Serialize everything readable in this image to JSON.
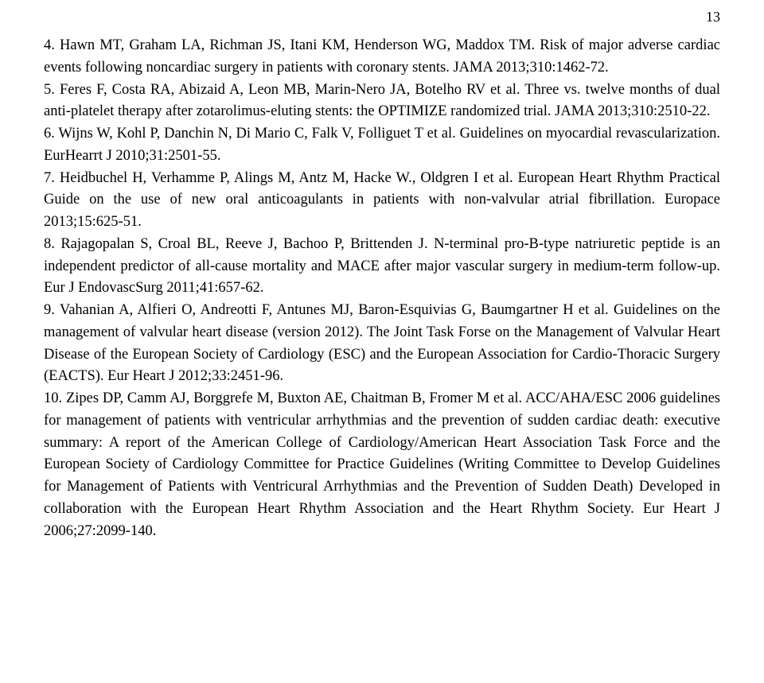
{
  "page_number": "13",
  "references": [
    "4. Hawn MT, Graham LA, Richman JS, Itani KM, Henderson WG, Maddox TM. Risk of major adverse cardiac events following noncardiac surgery in patients with coronary stents. JAMA 2013;310:1462-72.",
    "5. Feres F, Costa RA, Abizaid A, Leon MB, Marin-Nero JA, Botelho RV et al. Three vs. twelve months of dual anti-platelet therapy after zotarolimus-eluting stents: the OPTIMIZE randomized trial. JAMA 2013;310:2510-22.",
    "6. Wijns W, Kohl P, Danchin N, Di Mario C, Falk V, Folliguet T et al. Guidelines on myocardial revascularization. EurHearrt J 2010;31:2501-55.",
    "7. Heidbuchel H, Verhamme P, Alings M, Antz M, Hacke W., Oldgren I et al. European Heart Rhythm Practical Guide on the use of new oral anticoagulants in patients with non-valvular atrial fibrillation. Europace 2013;15:625-51.",
    "8. Rajagopalan S, Croal BL, Reeve J, Bachoo P, Brittenden J. N-terminal pro-B-type natriuretic peptide is an independent predictor of all-cause mortality and MACE after major vascular surgery in medium-term follow-up. Eur J EndovascSurg 2011;41:657-62.",
    "9. Vahanian A, Alfieri O, Andreotti F, Antunes MJ, Baron-Esquivias G, Baumgartner H et al. Guidelines on the management of valvular heart disease (version 2012). The Joint Task Forse on the Management of Valvular Heart Disease of the European Society of Cardiology (ESC) and the European Association for Cardio-Thoracic Surgery (EACTS). Eur Heart J 2012;33:2451-96.",
    "10. Zipes DP, Camm AJ, Borggrefe M, Buxton AE, Chaitman B, Fromer M et al. ACC/AHA/ESC 2006 guidelines for management of patients with ventricular arrhythmias and the prevention of sudden cardiac death: executive summary: A report of the American College of Cardiology/American Heart Association Task Force and the European Society of Cardiology Committee for Practice Guidelines (Writing Committee to Develop Guidelines for Management of Patients with Ventricural Arrhythmias and the Prevention of Sudden Death) Developed in collaboration with the European Heart Rhythm Association and the Heart Rhythm Society. Eur Heart J 2006;27:2099-140."
  ]
}
